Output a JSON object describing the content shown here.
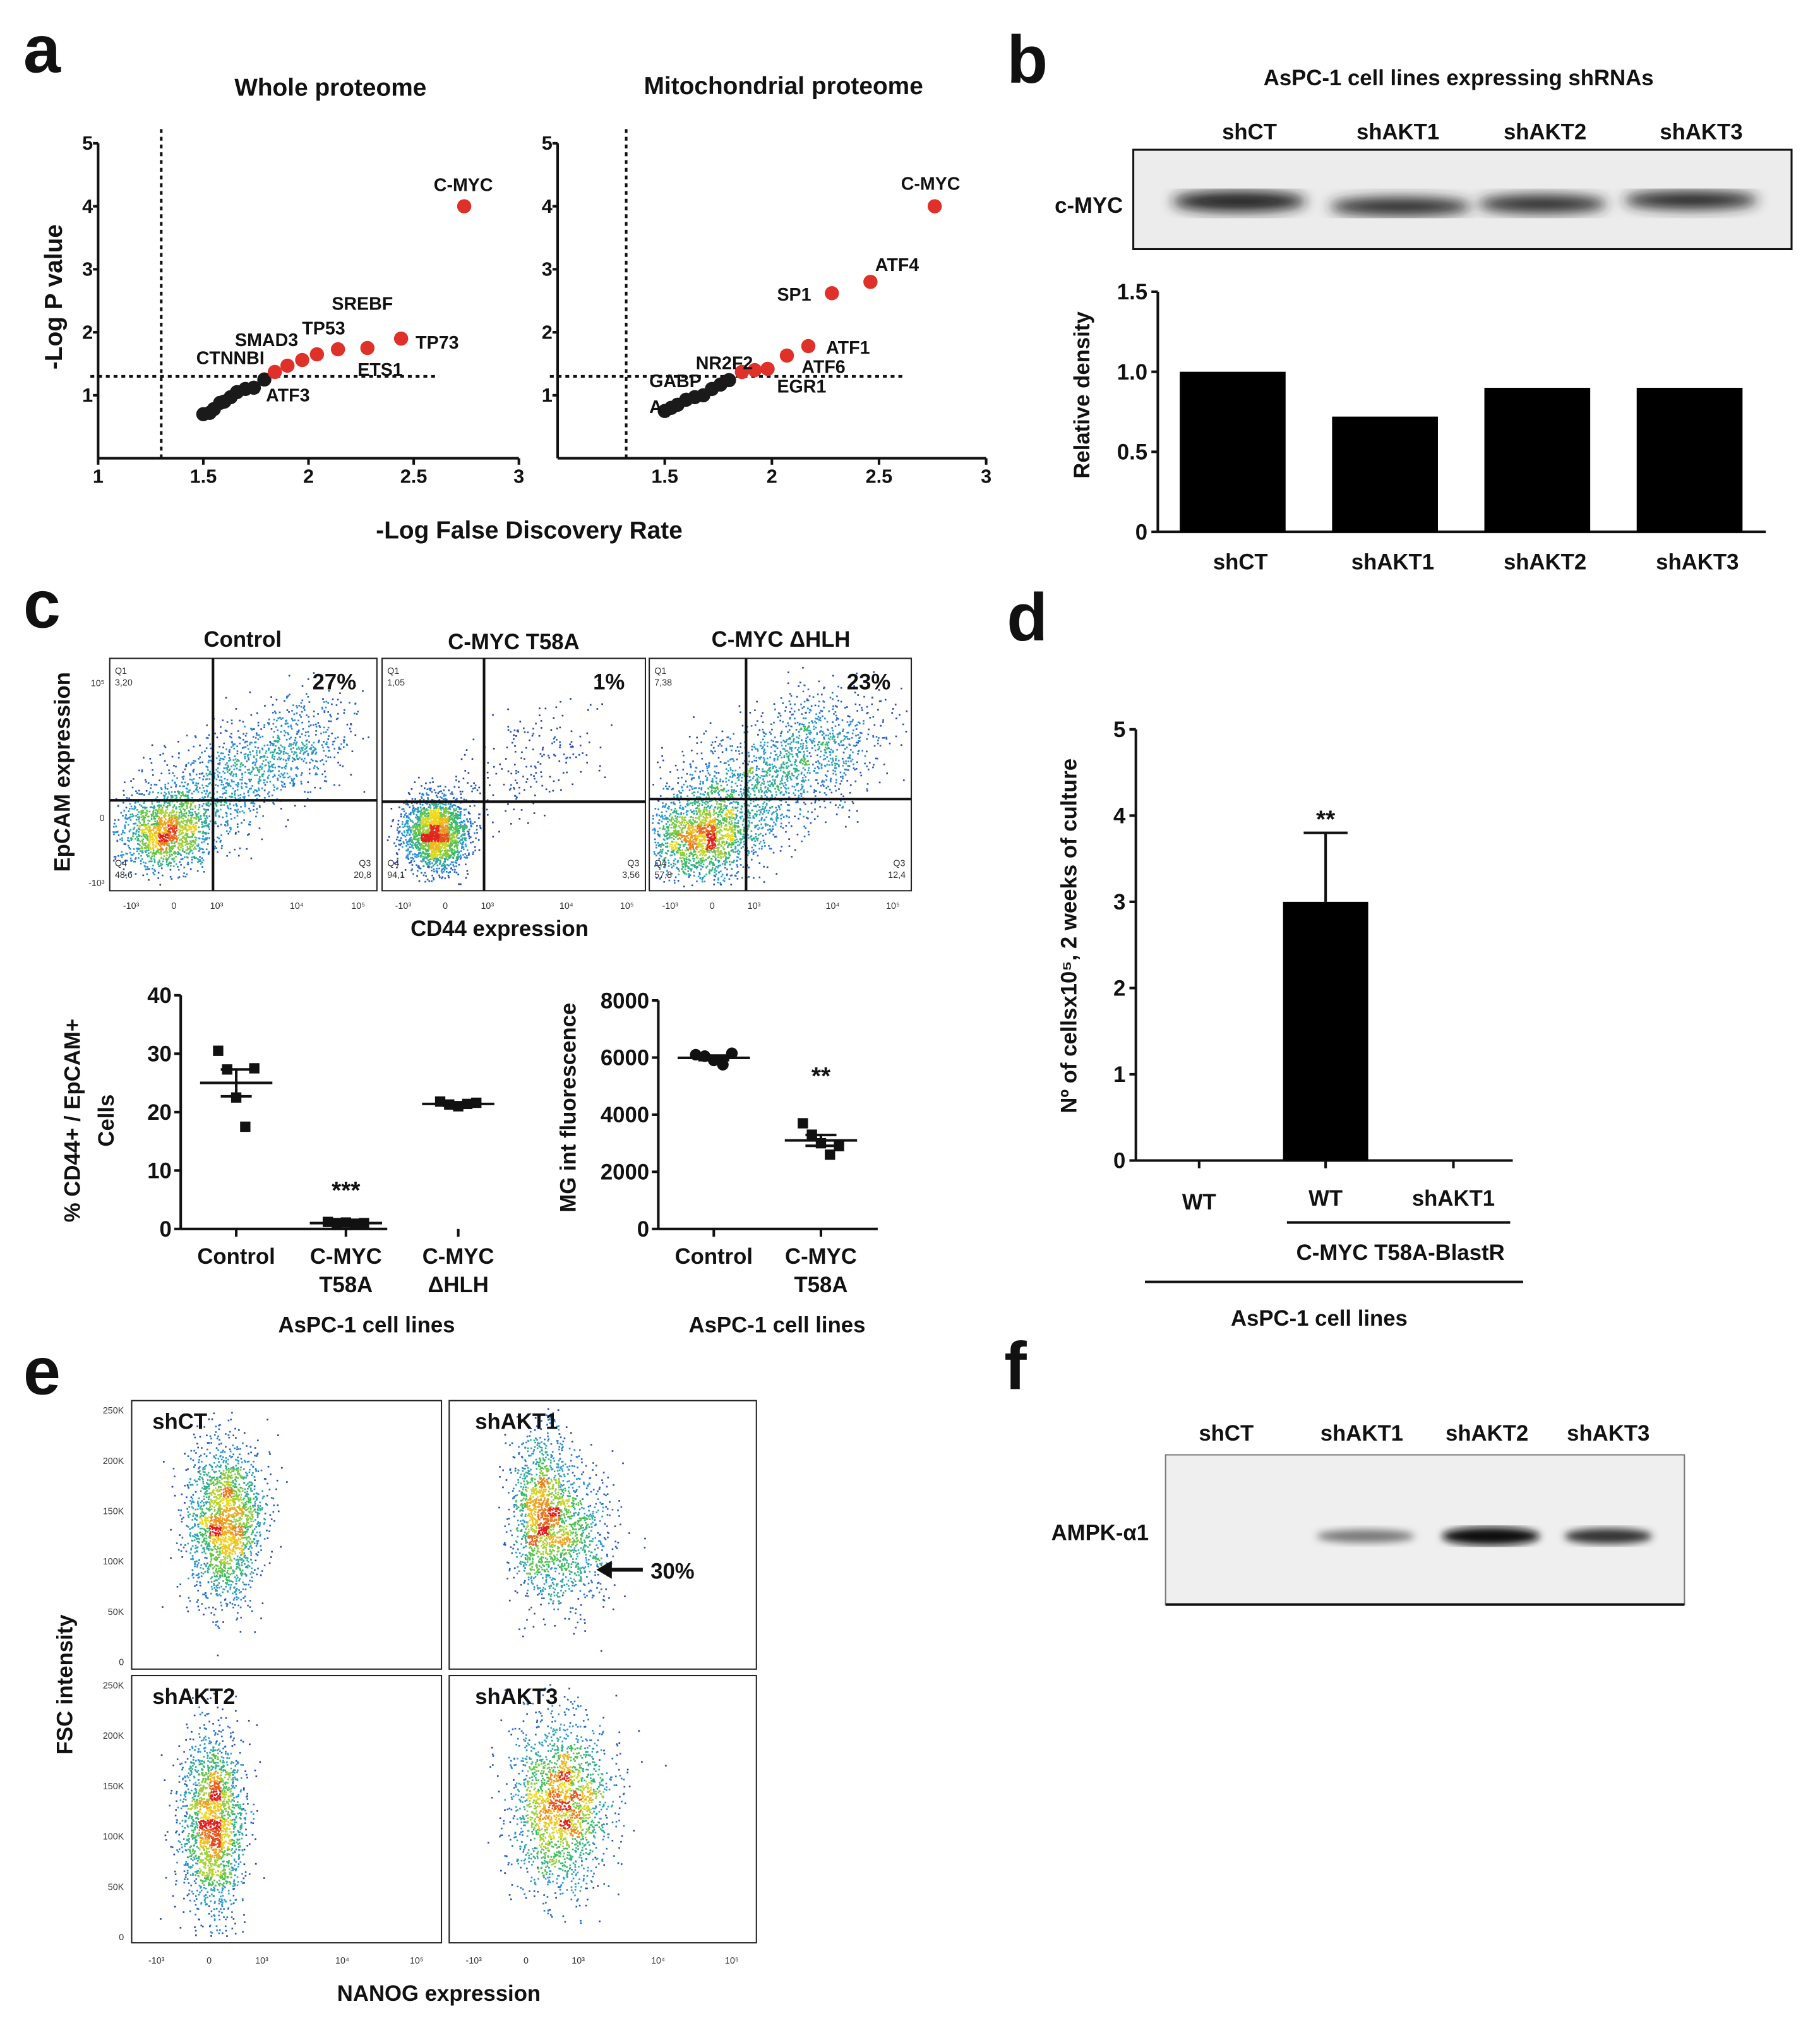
{
  "panel_letters": {
    "a": "a",
    "b": "b",
    "c": "c",
    "d": "d",
    "e": "e",
    "f": "f"
  },
  "chart_data": [
    {
      "type": "scatter",
      "title": "Whole proteome",
      "xlabel": "-Log False Discovery Rate",
      "ylabel": "-Log P value",
      "xlim": [
        1,
        3
      ],
      "ylim": [
        0,
        5
      ],
      "xticks": [
        "1",
        "1.5",
        "2",
        "2.5",
        "3"
      ],
      "xtick_values": [
        1,
        1.5,
        2,
        2.5,
        3
      ],
      "yticks": [
        "1",
        "2",
        "3",
        "4",
        "5"
      ],
      "ytick_values": [
        1,
        2,
        3,
        4,
        5
      ],
      "thresholds": {
        "x": 1.3,
        "y": 1.3
      },
      "series": [
        {
          "name": "not significant",
          "color": "#1a1a1a",
          "points": [
            [
              1.5,
              0.7
            ],
            [
              1.53,
              0.72
            ],
            [
              1.55,
              0.78
            ],
            [
              1.58,
              0.88
            ],
            [
              1.6,
              0.9
            ],
            [
              1.63,
              0.97
            ],
            [
              1.66,
              1.05
            ],
            [
              1.7,
              1.1
            ],
            [
              1.74,
              1.12
            ],
            [
              1.79,
              1.25
            ]
          ]
        },
        {
          "name": "significant",
          "color": "#e0302a",
          "points": [
            [
              1.84,
              1.37
            ],
            [
              1.9,
              1.47
            ],
            [
              1.97,
              1.56
            ],
            [
              2.04,
              1.65
            ],
            [
              2.14,
              1.73
            ],
            [
              2.28,
              1.75
            ],
            [
              2.44,
              1.9
            ],
            [
              2.74,
              4.0
            ]
          ]
        }
      ],
      "labels": [
        "C-MYC",
        "SREBF",
        "TP53",
        "SMAD3",
        "CTNNBI",
        "TP73",
        "ETS1",
        "ATF3"
      ]
    },
    {
      "type": "scatter",
      "title": "Mitochondrial proteome",
      "xlabel": "-Log False Discovery Rate",
      "xlim": [
        1,
        3
      ],
      "ylim": [
        0,
        5
      ],
      "xticks": [
        "1.5",
        "2",
        "2.5",
        "3"
      ],
      "xtick_values": [
        1.5,
        2,
        2.5,
        3
      ],
      "yticks": [
        "1",
        "2",
        "3",
        "4",
        "5"
      ],
      "ytick_values": [
        1,
        2,
        3,
        4,
        5
      ],
      "thresholds": {
        "x": 1.32,
        "y": 1.3
      },
      "series": [
        {
          "name": "not significant",
          "color": "#1a1a1a",
          "points": [
            [
              1.5,
              0.75
            ],
            [
              1.53,
              0.8
            ],
            [
              1.56,
              0.85
            ],
            [
              1.6,
              0.93
            ],
            [
              1.64,
              0.97
            ],
            [
              1.68,
              1.0
            ],
            [
              1.72,
              1.1
            ],
            [
              1.76,
              1.17
            ],
            [
              1.8,
              1.24
            ]
          ]
        },
        {
          "name": "significant",
          "color": "#e0302a",
          "points": [
            [
              1.86,
              1.37
            ],
            [
              1.92,
              1.4
            ],
            [
              1.98,
              1.42
            ],
            [
              2.07,
              1.63
            ],
            [
              2.17,
              1.78
            ],
            [
              2.28,
              2.62
            ],
            [
              2.46,
              2.8
            ],
            [
              2.76,
              4.0
            ]
          ]
        }
      ],
      "labels": [
        "C-MYC",
        "ATF4",
        "SP1",
        "ATF1",
        "ATF6",
        "NR2F2",
        "EGR1",
        "GABP",
        "A"
      ]
    },
    {
      "type": "bar",
      "title": "AsPC-1 cell lines expressing shRNAs",
      "ylabel": "Relative density",
      "categories": [
        "shCT",
        "shAKT1",
        "shAKT2",
        "shAKT3"
      ],
      "values": [
        1.0,
        0.72,
        0.9,
        0.9
      ],
      "ylim": [
        0,
        1.5
      ],
      "yticks": [
        "0",
        "0.5",
        "1.0",
        "1.5"
      ],
      "ytick_values": [
        0,
        0.5,
        1.0,
        1.5
      ],
      "color": "#000000"
    },
    {
      "type": "scatter",
      "ylabel": "% CD44+ / EpCAM+",
      "ylabel2": "Cells",
      "xlabel": "AsPC-1 cell lines",
      "categories": [
        [
          "Control"
        ],
        [
          "C-MYC",
          "T58A"
        ],
        [
          "C-MYC",
          "ΔHLH"
        ]
      ],
      "groups": [
        [
          30.5,
          27.3,
          22.5,
          17.5,
          27.5
        ],
        [
          1.2,
          1.0,
          1.1,
          0.9,
          1.0
        ],
        [
          21.8,
          21.3,
          21.0,
          21.4,
          21.6
        ]
      ],
      "means": [
        25.0,
        1.0,
        21.4
      ],
      "sem": [
        2.3,
        0.1,
        0.3
      ],
      "significance": [
        "",
        "***",
        ""
      ],
      "ylim": [
        0,
        40
      ],
      "yticks": [
        "0",
        "10",
        "20",
        "30",
        "40"
      ],
      "ytick_values": [
        0,
        10,
        20,
        30,
        40
      ]
    },
    {
      "type": "scatter",
      "ylabel": "MG int fluorescence",
      "xlabel": "AsPC-1 cell lines",
      "categories": [
        [
          "Control"
        ],
        [
          "C-MYC",
          "T58A"
        ]
      ],
      "groups": [
        [
          6100,
          6050,
          5900,
          5750,
          6150
        ],
        [
          3700,
          3300,
          3000,
          2600,
          2900
        ]
      ],
      "means": [
        5990,
        3100
      ],
      "sem": [
        80,
        190
      ],
      "significance": [
        "",
        "**"
      ],
      "ylim": [
        0,
        8000
      ],
      "yticks": [
        "0",
        "2000",
        "4000",
        "6000",
        "8000"
      ],
      "ytick_values": [
        0,
        2000,
        4000,
        6000,
        8000
      ]
    },
    {
      "type": "bar",
      "ylabel": "Nº of cellsx10⁵, 2 weeks of culture",
      "categories": [
        "WT",
        "WT",
        "shAKT1"
      ],
      "values": [
        0,
        3.0,
        0
      ],
      "error": [
        0,
        0.8,
        0
      ],
      "significance": [
        "",
        "**",
        ""
      ],
      "group_label": "C-MYC T58A-BlastR",
      "xlabel": "AsPC-1 cell lines",
      "ylim": [
        0,
        5
      ],
      "yticks": [
        "0",
        "1",
        "2",
        "3",
        "4",
        "5"
      ],
      "ytick_values": [
        0,
        1,
        2,
        3,
        4,
        5
      ]
    }
  ],
  "western_b": {
    "protein": "c-MYC",
    "lanes": [
      "shCT",
      "shAKT1",
      "shAKT2",
      "shAKT3"
    ]
  },
  "flow_c": {
    "ylabel": "EpCAM expression",
    "xlabel": "CD44 expression",
    "xticks": [
      "-10³",
      "0",
      "10³",
      "10⁴",
      "10⁵"
    ],
    "yticks": [
      "10⁵",
      "0",
      "-10³"
    ],
    "panels": [
      {
        "title": "Control",
        "percent": "27%",
        "q1": "Q1",
        "q1v": "3,20",
        "q4": "Q4",
        "q4v": "48,6",
        "q3": "Q3",
        "q3v": "20,8"
      },
      {
        "title": "C-MYC T58A",
        "percent": "1%",
        "q1": "Q1",
        "q1v": "1,05",
        "q4": "Q4",
        "q4v": "94,1",
        "q3": "Q3",
        "q3v": "3,56"
      },
      {
        "title": "C-MYC ΔHLH",
        "percent": "23%",
        "q1": "Q1",
        "q1v": "7,38",
        "q4": "Q4",
        "q4v": "57,8",
        "q3": "Q3",
        "q3v": "12,4"
      }
    ]
  },
  "flow_e": {
    "ylabel": "FSC intensity",
    "xlabel": "NANOG expression",
    "yticks": [
      "250K",
      "200K",
      "150K",
      "100K",
      "50K",
      "0"
    ],
    "xticks": [
      "-10³",
      "0",
      "10³",
      "10⁴",
      "10⁵"
    ],
    "panels": [
      {
        "title": "shCT"
      },
      {
        "title": "shAKT1",
        "annotation": "30%"
      },
      {
        "title": "shAKT2"
      },
      {
        "title": "shAKT3"
      }
    ]
  },
  "western_f": {
    "protein": "AMPK-α1",
    "lanes": [
      "shCT",
      "shAKT1",
      "shAKT2",
      "shAKT3"
    ]
  }
}
